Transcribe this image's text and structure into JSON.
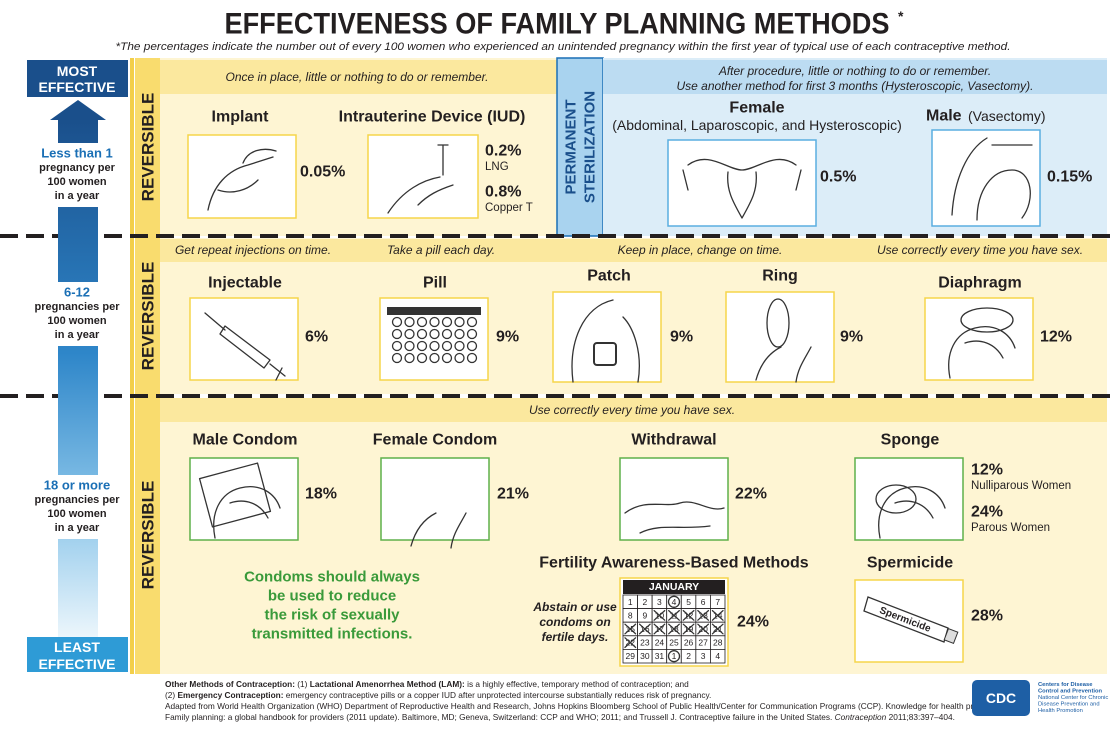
{
  "header": {
    "title": "EFFECTIVENESS OF FAMILY PLANNING METHODS",
    "title_mark": "*",
    "note": "*The percentages indicate the number out of every 100 women who experienced an unintended pregnancy within the first year of typical use of each contraceptive method."
  },
  "scale": {
    "top": [
      "MOST",
      "EFFECTIVE"
    ],
    "bottom": [
      "LEAST",
      "EFFECTIVE"
    ],
    "tiers": [
      {
        "rate": "Less than 1",
        "lines": [
          "pregnancy per",
          "100 women",
          "in a year"
        ]
      },
      {
        "rate": "6-12",
        "lines": [
          "pregnancies per",
          "100 women",
          "in a year"
        ]
      },
      {
        "rate": "18 or more",
        "lines": [
          "pregnancies per",
          "100 women",
          "in a year"
        ]
      }
    ]
  },
  "tiers": [
    {
      "label": "REVERSIBLE",
      "instructions": [
        "Once in place, little or nothing to do or remember."
      ],
      "methods": [
        {
          "name": "Implant",
          "rates": [
            {
              "rate": "0.05%"
            }
          ]
        },
        {
          "name": "Intrauterine Device (IUD)",
          "rates": [
            {
              "rate": "0.2%",
              "note": "LNG"
            },
            {
              "rate": "0.8%",
              "note": "Copper T"
            }
          ]
        }
      ]
    },
    {
      "label": "REVERSIBLE",
      "instructions": [
        "Get repeat injections on time.",
        "Take a pill each day.",
        "Keep in place, change on time.",
        "Use correctly every time you have sex."
      ],
      "methods": [
        {
          "name": "Injectable",
          "rates": [
            {
              "rate": "6%"
            }
          ]
        },
        {
          "name": "Pill",
          "rates": [
            {
              "rate": "9%"
            }
          ]
        },
        {
          "name": "Patch",
          "rates": [
            {
              "rate": "9%"
            }
          ]
        },
        {
          "name": "Ring",
          "rates": [
            {
              "rate": "9%"
            }
          ]
        },
        {
          "name": "Diaphragm",
          "rates": [
            {
              "rate": "12%"
            }
          ]
        }
      ]
    },
    {
      "label": "REVERSIBLE",
      "instructions": [
        "Use correctly every time you have sex."
      ],
      "methods": [
        {
          "name": "Male Condom",
          "rates": [
            {
              "rate": "18%"
            }
          ]
        },
        {
          "name": "Female Condom",
          "rates": [
            {
              "rate": "21%"
            }
          ]
        },
        {
          "name": "Withdrawal",
          "rates": [
            {
              "rate": "22%"
            }
          ]
        },
        {
          "name": "Sponge",
          "rates": [
            {
              "rate": "12%",
              "note": "Nulliparous Women"
            },
            {
              "rate": "24%",
              "note": "Parous Women"
            }
          ]
        },
        {
          "name": "Fertility Awareness-Based Methods",
          "rates": [
            {
              "rate": "24%"
            }
          ],
          "note_lines": [
            "Abstain or use",
            "condoms on",
            "fertile days."
          ]
        },
        {
          "name": "Spermicide",
          "rates": [
            {
              "rate": "28%"
            }
          ],
          "tube_label": "Spermicide"
        }
      ],
      "condom_message": [
        "Condoms should always",
        "be used to reduce",
        "the risk of sexually",
        "transmitted infections."
      ],
      "calendar": {
        "month": "JANUARY",
        "days": [
          [
            1,
            2,
            3,
            4,
            5,
            6,
            7
          ],
          [
            8,
            9,
            10,
            11,
            12,
            13,
            14
          ],
          [
            15,
            16,
            17,
            18,
            19,
            20,
            21
          ],
          [
            22,
            23,
            24,
            25,
            26,
            27,
            28
          ],
          [
            29,
            30,
            31,
            1,
            2,
            3,
            4
          ]
        ]
      }
    }
  ],
  "sterilization": {
    "label": [
      "PERMANENT",
      "STERILIZATION"
    ],
    "instructions": [
      "After procedure, little or nothing to do or remember.",
      "Use another method for first 3 months (Hysteroscopic, Vasectomy)."
    ],
    "methods": [
      {
        "name": "Female",
        "detail": "(Abdominal, Laparoscopic, and Hysteroscopic)",
        "rates": [
          {
            "rate": "0.5%"
          }
        ]
      },
      {
        "name": "Male",
        "detail": "(Vasectomy)",
        "rates": [
          {
            "rate": "0.15%"
          }
        ]
      }
    ]
  },
  "footer": {
    "lines": [
      [
        "Other Methods of Contraception:",
        " (1) ",
        "Lactational Amenorrhea Method (LAM):",
        " is a highly effective, temporary method of contraception; and"
      ],
      [
        "(2) ",
        "Emergency Contraception:",
        " emergency contraceptive pills or a copper IUD after unprotected intercourse substantially reduces risk of pregnancy."
      ],
      [
        "Adapted from World Health Organization (WHO) Department of Reproductive Health and Research, Johns Hopkins Bloomberg School of Public Health/Center for Communication Programs (CCP). Knowledge for health project."
      ],
      [
        "Family planning: a global handbook for providers (2011 update). Baltimore, MD; Geneva, Switzerland: CCP and WHO; 2011; and Trussell J. Contraceptive failure in the United States. ",
        "Contraception",
        " 2011;83:397–404."
      ]
    ],
    "logo": "CDC",
    "logo_lines": [
      "Centers for Disease",
      "Control and Prevention",
      "National Center for Chronic",
      "Disease Prevention and",
      "Health Promotion"
    ]
  }
}
